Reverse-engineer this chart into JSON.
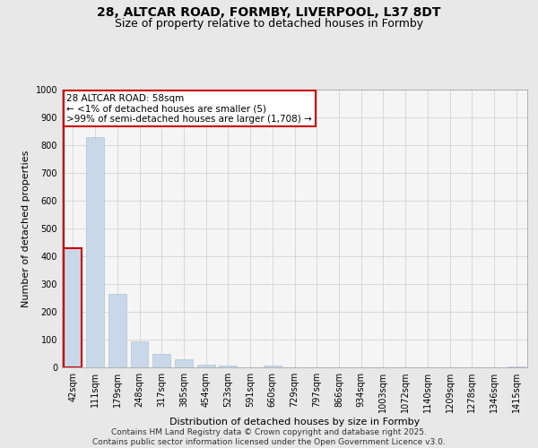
{
  "title": "28, ALTCAR ROAD, FORMBY, LIVERPOOL, L37 8DT",
  "subtitle": "Size of property relative to detached houses in Formby",
  "xlabel": "Distribution of detached houses by size in Formby",
  "ylabel": "Number of detached properties",
  "bins": [
    "42sqm",
    "111sqm",
    "179sqm",
    "248sqm",
    "317sqm",
    "385sqm",
    "454sqm",
    "523sqm",
    "591sqm",
    "660sqm",
    "729sqm",
    "797sqm",
    "866sqm",
    "934sqm",
    "1003sqm",
    "1072sqm",
    "1140sqm",
    "1209sqm",
    "1278sqm",
    "1346sqm",
    "1415sqm"
  ],
  "values": [
    430,
    830,
    265,
    95,
    50,
    30,
    10,
    5,
    0,
    5,
    0,
    0,
    0,
    0,
    0,
    0,
    0,
    0,
    0,
    0,
    3
  ],
  "bar_color": "#c8d8e8",
  "bar_edge_color": "#b0c4d4",
  "highlight_bar_index": 0,
  "highlight_edge_color": "#cc0000",
  "annotation_text": "28 ALTCAR ROAD: 58sqm\n← <1% of detached houses are smaller (5)\n>99% of semi-detached houses are larger (1,708) →",
  "annotation_box_color": "#ffffff",
  "annotation_box_edge_color": "#cc0000",
  "ylim": [
    0,
    1000
  ],
  "yticks": [
    0,
    100,
    200,
    300,
    400,
    500,
    600,
    700,
    800,
    900,
    1000
  ],
  "grid_color": "#cccccc",
  "bg_color": "#e8e8e8",
  "plot_bg_color": "#f5f5f5",
  "footer": "Contains HM Land Registry data © Crown copyright and database right 2025.\nContains public sector information licensed under the Open Government Licence v3.0.",
  "title_fontsize": 10,
  "subtitle_fontsize": 9,
  "tick_fontsize": 7,
  "ylabel_fontsize": 8,
  "xlabel_fontsize": 8,
  "footer_fontsize": 6.5,
  "annotation_fontsize": 7.5
}
